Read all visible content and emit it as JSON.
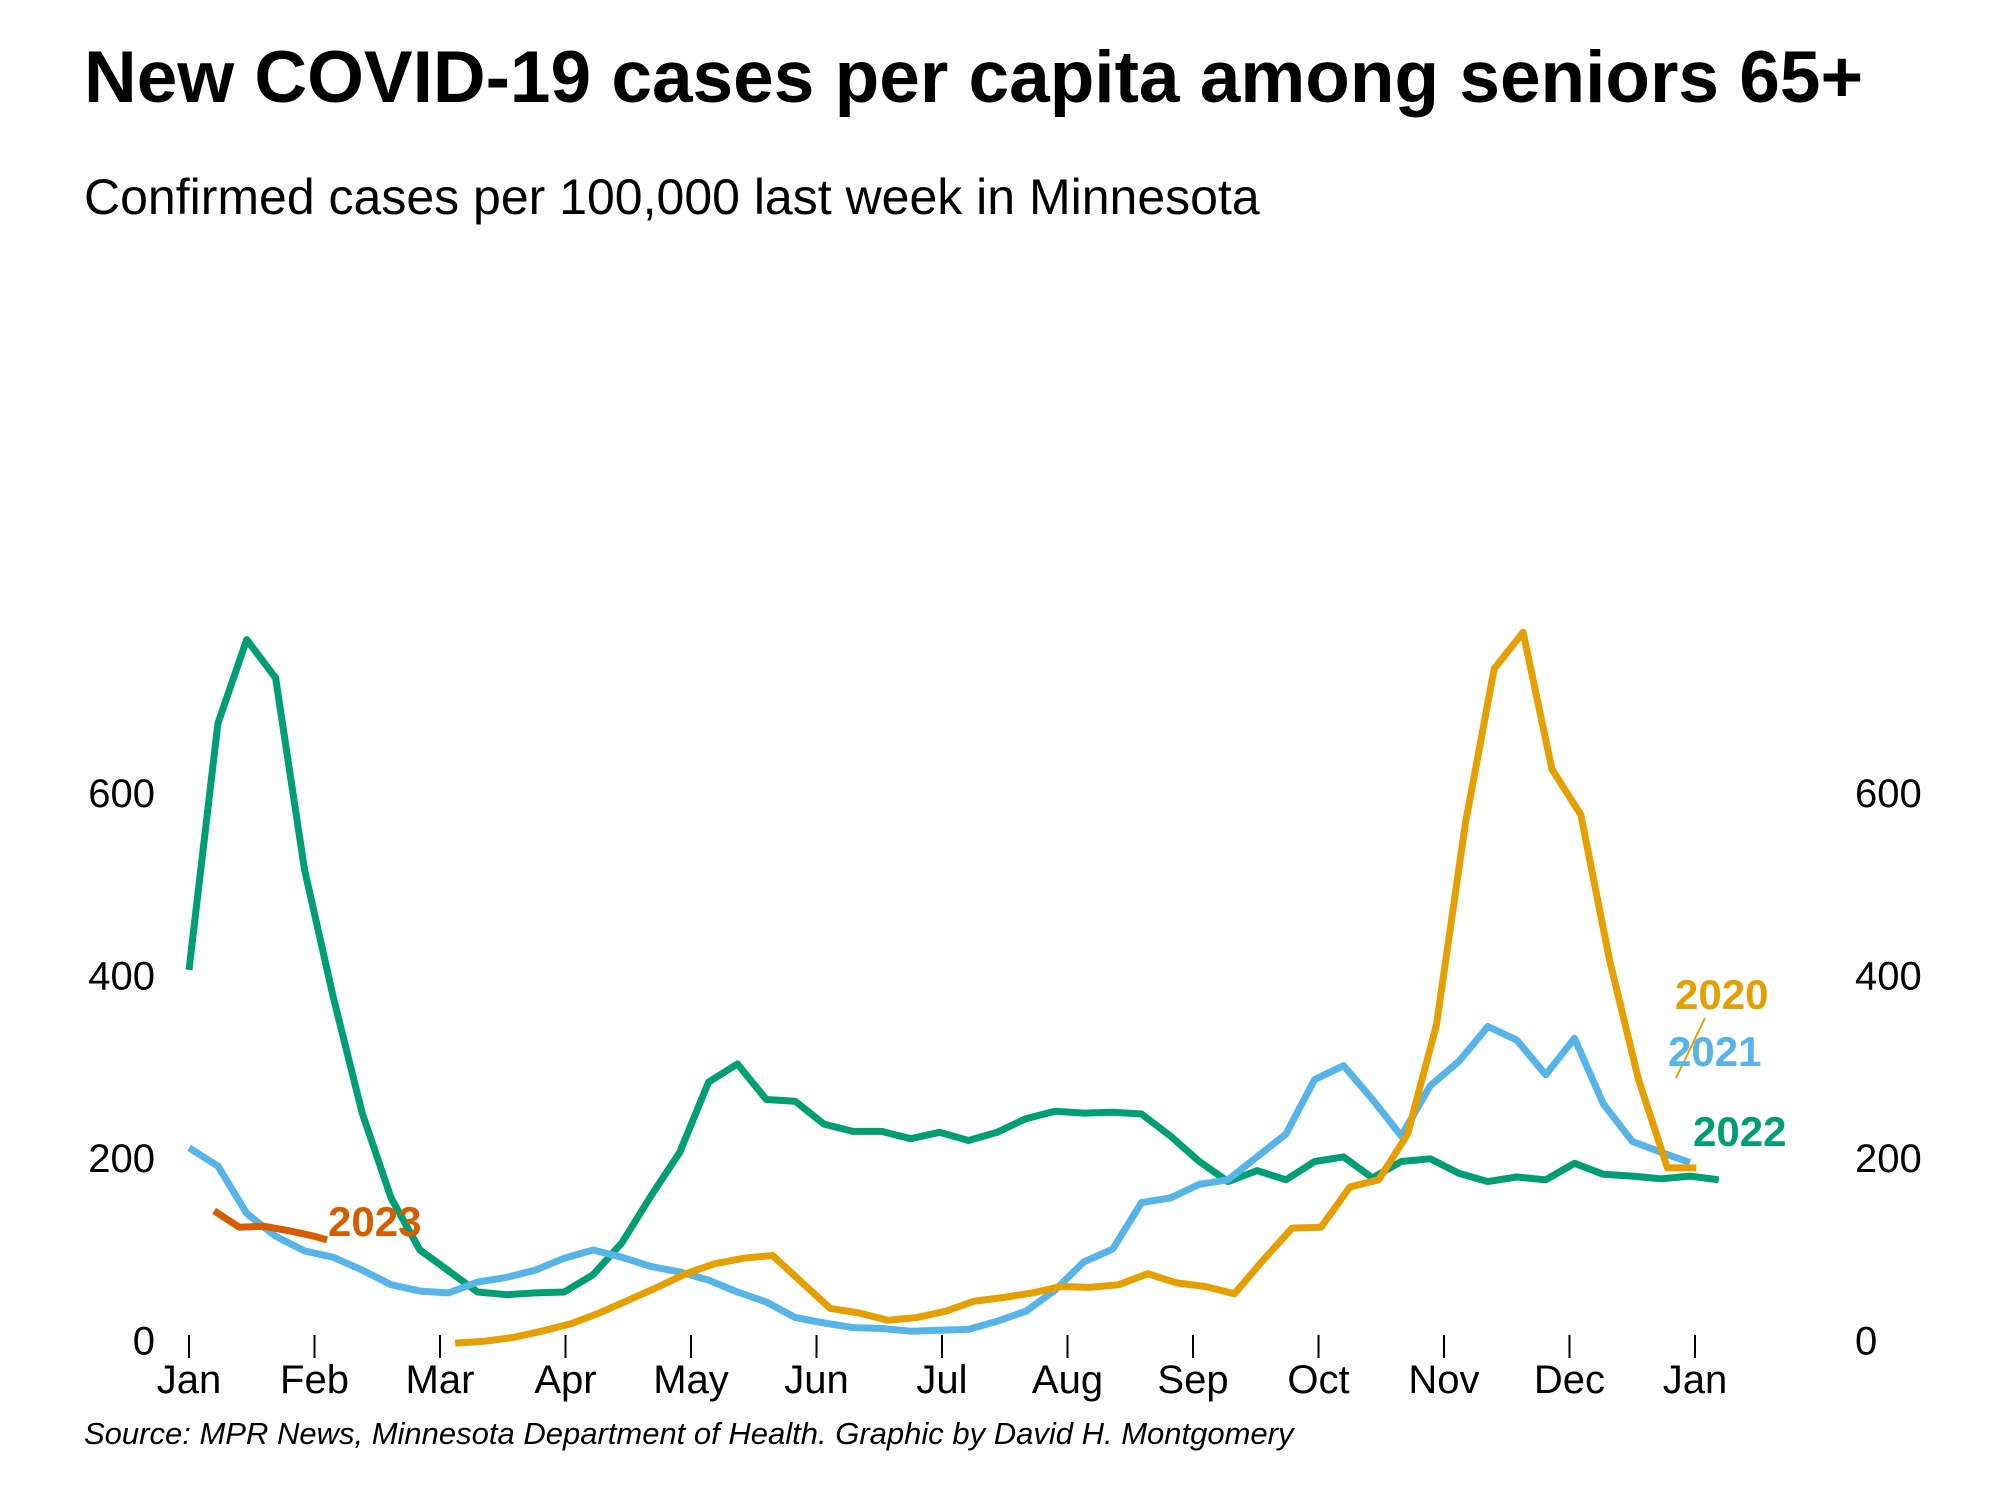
{
  "title": "New COVID-19 cases per capita among seniors 65+",
  "subtitle": "Confirmed cases per 100,000 last week in Minnesota",
  "source": "Source: MPR News, Minnesota Department of Health. Graphic by David H. Montgomery",
  "chart_data": {
    "type": "line",
    "title": "New COVID-19 cases per capita among seniors 65+",
    "subtitle": "Confirmed cases per 100,000 last week in Minnesota",
    "xlabel": "",
    "ylabel": "",
    "ylim": [
      0,
      790
    ],
    "y_ticks": [
      0,
      200,
      400,
      600
    ],
    "y_tick_labels": [
      "0",
      "200",
      "400",
      "600"
    ],
    "x_ticks": [
      0,
      1,
      2,
      3,
      4,
      5,
      6,
      7,
      8,
      9,
      10,
      11,
      12
    ],
    "x_tick_labels": [
      "Jan",
      "Feb",
      "Mar",
      "Apr",
      "May",
      "Jun",
      "Jul",
      "Aug",
      "Sep",
      "Oct",
      "Nov",
      "Dec",
      "Jan"
    ],
    "grid": false,
    "right_axis": true,
    "series": [
      {
        "name": "2020",
        "color": "#E69F00",
        "x": [
          2.12,
          2.35,
          2.58,
          2.81,
          3.04,
          3.27,
          3.5,
          3.73,
          3.96,
          4.19,
          4.42,
          4.65,
          4.88,
          5.11,
          5.34,
          5.57,
          5.8,
          6.03,
          6.26,
          6.49,
          6.72,
          6.95,
          7.18,
          7.41,
          7.64,
          7.87,
          8.1,
          8.33,
          8.56,
          8.79,
          9.02,
          9.25,
          9.48,
          9.71,
          9.94,
          10.17,
          10.4,
          10.63,
          10.86,
          11.09,
          11.32,
          11.55,
          11.78,
          12.01
        ],
        "y": [
          1,
          3,
          7,
          14,
          22,
          34,
          48,
          62,
          77,
          88,
          94,
          97,
          68,
          39,
          34,
          26,
          29,
          36,
          47,
          51,
          56,
          63,
          62,
          65,
          77,
          67,
          63,
          55,
          92,
          127,
          128,
          172,
          180,
          230,
          350,
          570,
          740,
          780,
          630,
          580,
          420,
          290,
          193,
          193
        ]
      },
      {
        "name": "2021",
        "color": "#56B4E9",
        "x": [
          0,
          0.23,
          0.46,
          0.69,
          0.92,
          1.15,
          1.38,
          1.61,
          1.84,
          2.07,
          2.3,
          2.53,
          2.76,
          2.99,
          3.22,
          3.45,
          3.68,
          3.91,
          4.14,
          4.37,
          4.6,
          4.83,
          5.06,
          5.29,
          5.52,
          5.75,
          5.98,
          6.21,
          6.44,
          6.67,
          6.9,
          7.13,
          7.36,
          7.59,
          7.82,
          8.05,
          8.28,
          8.51,
          8.74,
          8.97,
          9.2,
          9.43,
          9.66,
          9.89,
          10.12,
          10.35,
          10.58,
          10.81,
          11.04,
          11.27,
          11.5,
          11.73,
          11.96
        ],
        "y": [
          215,
          195,
          143,
          118,
          102,
          95,
          81,
          65,
          58,
          56,
          68,
          73,
          81,
          94,
          103,
          95,
          85,
          79,
          70,
          57,
          46,
          29,
          23,
          18,
          17,
          14,
          15,
          16,
          25,
          36,
          59,
          90,
          104,
          155,
          160,
          175,
          180,
          205,
          230,
          290,
          305,
          268,
          228,
          283,
          310,
          348,
          333,
          295,
          335,
          263,
          222,
          210,
          199
        ]
      },
      {
        "name": "2022",
        "color": "#009E73",
        "x": [
          0,
          0.23,
          0.46,
          0.69,
          0.92,
          1.15,
          1.38,
          1.61,
          1.84,
          2.07,
          2.3,
          2.53,
          2.76,
          2.99,
          3.22,
          3.45,
          3.68,
          3.91,
          4.14,
          4.37,
          4.6,
          4.83,
          5.06,
          5.29,
          5.52,
          5.75,
          5.98,
          6.21,
          6.44,
          6.67,
          6.9,
          7.13,
          7.36,
          7.59,
          7.82,
          8.05,
          8.28,
          8.51,
          8.74,
          8.97,
          9.2,
          9.43,
          9.66,
          9.89,
          10.12,
          10.35,
          10.58,
          10.81,
          11.04,
          11.27,
          11.5,
          11.73,
          11.96,
          12.19
        ],
        "y": [
          410,
          680,
          772,
          730,
          520,
          380,
          253,
          160,
          103,
          80,
          57,
          54,
          56,
          57,
          76,
          111,
          162,
          210,
          287,
          307,
          268,
          266,
          241,
          233,
          233,
          225,
          232,
          223,
          232,
          247,
          255,
          253,
          254,
          252,
          228,
          200,
          178,
          190,
          180,
          200,
          205,
          182,
          200,
          203,
          187,
          178,
          183,
          180,
          198,
          186,
          184,
          181,
          184,
          180
        ]
      },
      {
        "name": "2023",
        "color": "#D55E00",
        "x": [
          0.2,
          0.4,
          0.6,
          0.8,
          1.0,
          1.1
        ],
        "y": [
          146,
          128,
          129,
          124,
          118,
          114
        ]
      }
    ],
    "series_labels": [
      {
        "name": "2020",
        "text": "2020"
      },
      {
        "name": "2021",
        "text": "2021"
      },
      {
        "name": "2022",
        "text": "2022"
      },
      {
        "name": "2023",
        "text": "2023"
      }
    ]
  }
}
